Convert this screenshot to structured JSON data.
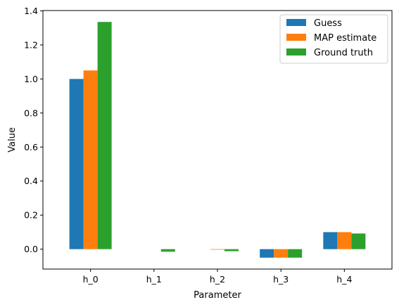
{
  "chart_data": {
    "type": "bar",
    "title": "",
    "xlabel": "Parameter",
    "ylabel": "Value",
    "categories": [
      "h_0",
      "h_1",
      "h_2",
      "h_3",
      "h_4"
    ],
    "series": [
      {
        "name": "Guess",
        "color": "#1f77b4",
        "values": [
          1.0,
          0.0,
          0.0,
          -0.05,
          0.1
        ]
      },
      {
        "name": "MAP estimate",
        "color": "#ff7f0e",
        "values": [
          1.05,
          0.0,
          -0.003,
          -0.05,
          0.1
        ]
      },
      {
        "name": "Ground truth",
        "color": "#2ca02c",
        "values": [
          1.335,
          -0.015,
          -0.012,
          -0.05,
          0.092
        ]
      }
    ],
    "ylim": [
      -0.117,
      1.402
    ],
    "yticks": [
      0.0,
      0.2,
      0.4,
      0.6,
      0.8,
      1.0,
      1.2,
      1.4
    ],
    "ytick_labels": [
      "0.0",
      "0.2",
      "0.4",
      "0.6",
      "0.8",
      "1.0",
      "1.2",
      "1.4"
    ],
    "legend_position": "top-right",
    "grid": false
  }
}
